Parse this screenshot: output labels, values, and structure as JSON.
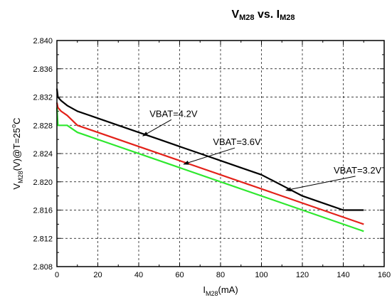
{
  "chart_data": {
    "type": "line",
    "title": {
      "main": "V",
      "sub": "M28",
      "mid": " vs. I",
      "sub2": "M28"
    },
    "xlabel": {
      "main": "I",
      "sub": "M28",
      "rest": "(mA)"
    },
    "ylabel": {
      "main": "V",
      "sub": "M28",
      "rest": "(V)@T=25",
      "deg": "o",
      "tail": "C"
    },
    "xlim": [
      0,
      160
    ],
    "ylim": [
      2.808,
      2.84
    ],
    "xticks": [
      "0",
      "20",
      "40",
      "60",
      "80",
      "100",
      "120",
      "140",
      "160"
    ],
    "yticks": [
      "2.808",
      "2.812",
      "2.816",
      "2.820",
      "2.824",
      "2.828",
      "2.832",
      "2.836",
      "2.840"
    ],
    "grid": "dashed",
    "series": [
      {
        "name": "VBAT=4.2V",
        "color": "#000000",
        "x": [
          0,
          0.5,
          2,
          5,
          10,
          20,
          30,
          40,
          50,
          60,
          70,
          80,
          90,
          100,
          110,
          120,
          130,
          140,
          150
        ],
        "y": [
          2.8332,
          2.832,
          2.8315,
          2.8308,
          2.83,
          2.829,
          2.828,
          2.827,
          2.826,
          2.825,
          2.824,
          2.823,
          2.822,
          2.821,
          2.8195,
          2.818,
          2.817,
          2.816,
          2.816
        ]
      },
      {
        "name": "VBAT=3.6V",
        "color": "#e32119",
        "x": [
          0,
          0.5,
          2,
          5,
          10,
          150
        ],
        "y": [
          2.8312,
          2.8305,
          2.83,
          2.8294,
          2.828,
          2.814
        ]
      },
      {
        "name": "VBAT=3.2V",
        "color": "#2ee82e",
        "x": [
          0,
          0.5,
          2,
          5,
          10,
          150
        ],
        "y": [
          2.8305,
          2.828,
          2.828,
          2.828,
          2.827,
          2.813
        ]
      }
    ],
    "annotations": [
      {
        "text": "VBAT=4.2V",
        "series": 0,
        "at_x": 42,
        "at_y": 2.8265,
        "label_x": 57,
        "label_y": 2.8292
      },
      {
        "text": "VBAT=3.6V",
        "series": 1,
        "at_x": 62,
        "at_y": 2.8225,
        "label_x": 88,
        "label_y": 2.8252
      },
      {
        "text": "VBAT=3.2V",
        "series": 2,
        "at_x": 112,
        "at_y": 2.8188,
        "label_x": 147,
        "label_y": 2.8212
      }
    ]
  }
}
